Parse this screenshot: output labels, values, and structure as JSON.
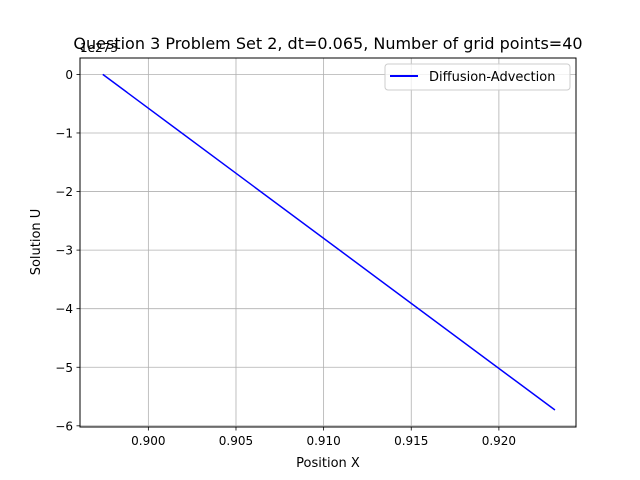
{
  "chart_data": {
    "type": "line",
    "title": "Question 3 Problem Set 2, dt=0.065, Number of grid points=40",
    "xlabel": "Position X",
    "ylabel": "Solution U",
    "offset_text": "1e273",
    "xlim": [
      0.8961,
      0.9244
    ],
    "ylim": [
      -6.02,
      0.28
    ],
    "xticks": [
      0.9,
      0.905,
      0.91,
      0.915,
      0.92
    ],
    "xtick_labels": [
      "0.900",
      "0.905",
      "0.910",
      "0.915",
      "0.920"
    ],
    "yticks": [
      0,
      -1,
      -2,
      -3,
      -4,
      -5,
      -6
    ],
    "ytick_labels": [
      "0",
      "−1",
      "−2",
      "−3",
      "−4",
      "−5",
      "−6"
    ],
    "grid": true,
    "legend": "upper right",
    "series": [
      {
        "name": "Diffusion-Advection",
        "color": "#0000ff",
        "x": [
          0.8974,
          0.9232
        ],
        "y": [
          0.0,
          -5.73
        ]
      }
    ]
  }
}
